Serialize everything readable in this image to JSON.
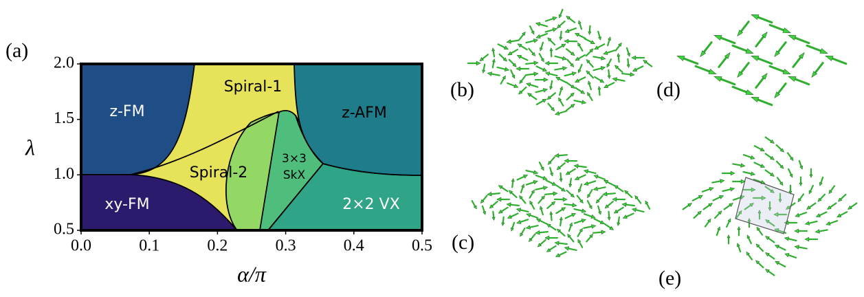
{
  "panel_label": "(a)",
  "chart_data": {
    "type": "phase-diagram",
    "xlabel": "α/π",
    "ylabel": "λ",
    "xlim": [
      0,
      0.5
    ],
    "ylim": [
      0.5,
      2.0
    ],
    "xticks": [
      {
        "value": 0,
        "label": "0.0"
      },
      0.1,
      0.2,
      0.3,
      0.4,
      0.5
    ],
    "yticks": [
      0.5,
      {
        "value": 1,
        "label": "1.0"
      },
      1.5,
      {
        "value": 2,
        "label": "2.0"
      }
    ],
    "regions": [
      {
        "lines": [
          "Spiral-1"
        ],
        "color": "#e6e25a"
      },
      {
        "lines": [
          "Spiral-2"
        ],
        "color": "#93d765"
      },
      {
        "lines": [
          "3×3",
          "SkX"
        ],
        "color": "#4fbd7c"
      },
      {
        "lines": [
          "2×2 VX"
        ],
        "color": "#30a486"
      },
      {
        "lines": [
          "z-AFM"
        ],
        "color": "#1f7c8a"
      },
      {
        "lines": [
          "z-FM"
        ],
        "color": "#1f4d86"
      },
      {
        "lines": [
          "xy-FM"
        ],
        "color": "#2c1b6c"
      }
    ]
  },
  "panels": [
    "(b)",
    "(c)",
    "(d)",
    "(e)"
  ]
}
